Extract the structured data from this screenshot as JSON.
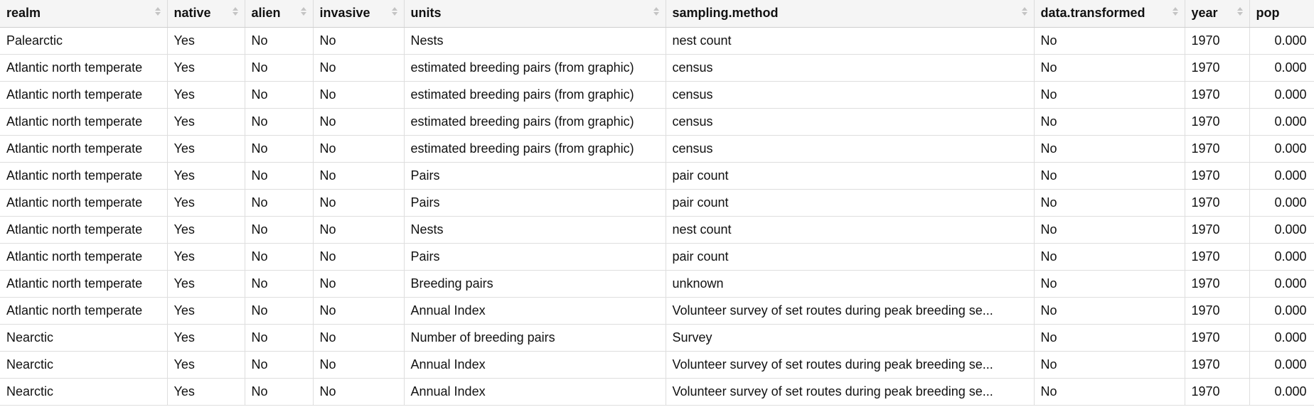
{
  "columns": [
    {
      "key": "realm",
      "label": "realm"
    },
    {
      "key": "native",
      "label": "native"
    },
    {
      "key": "alien",
      "label": "alien"
    },
    {
      "key": "invasive",
      "label": "invasive"
    },
    {
      "key": "units",
      "label": "units"
    },
    {
      "key": "sampling_method",
      "label": "sampling.method"
    },
    {
      "key": "data_transformed",
      "label": "data.transformed"
    },
    {
      "key": "year",
      "label": "year"
    },
    {
      "key": "pop",
      "label": "pop"
    }
  ],
  "rows": [
    [
      "Palearctic",
      "Yes",
      "No",
      "No",
      "Nests",
      "nest count",
      "No",
      "1970",
      "0.000"
    ],
    [
      "Atlantic north temperate",
      "Yes",
      "No",
      "No",
      "estimated breeding pairs (from graphic)",
      "census",
      "No",
      "1970",
      "0.000"
    ],
    [
      "Atlantic north temperate",
      "Yes",
      "No",
      "No",
      "estimated breeding pairs (from graphic)",
      "census",
      "No",
      "1970",
      "0.000"
    ],
    [
      "Atlantic north temperate",
      "Yes",
      "No",
      "No",
      "estimated breeding pairs (from graphic)",
      "census",
      "No",
      "1970",
      "0.000"
    ],
    [
      "Atlantic north temperate",
      "Yes",
      "No",
      "No",
      "estimated breeding pairs (from graphic)",
      "census",
      "No",
      "1970",
      "0.000"
    ],
    [
      "Atlantic north temperate",
      "Yes",
      "No",
      "No",
      "Pairs",
      "pair count",
      "No",
      "1970",
      "0.000"
    ],
    [
      "Atlantic north temperate",
      "Yes",
      "No",
      "No",
      "Pairs",
      "pair count",
      "No",
      "1970",
      "0.000"
    ],
    [
      "Atlantic north temperate",
      "Yes",
      "No",
      "No",
      "Nests",
      "nest count",
      "No",
      "1970",
      "0.000"
    ],
    [
      "Atlantic north temperate",
      "Yes",
      "No",
      "No",
      "Pairs",
      "pair count",
      "No",
      "1970",
      "0.000"
    ],
    [
      "Atlantic north temperate",
      "Yes",
      "No",
      "No",
      "Breeding pairs",
      "unknown",
      "No",
      "1970",
      "0.000"
    ],
    [
      "Atlantic north temperate",
      "Yes",
      "No",
      "No",
      "Annual Index",
      "Volunteer survey of set routes during peak breeding se...",
      "No",
      "1970",
      "0.000"
    ],
    [
      "Nearctic",
      "Yes",
      "No",
      "No",
      "Number of breeding pairs",
      "Survey",
      "No",
      "1970",
      "0.000"
    ],
    [
      "Nearctic",
      "Yes",
      "No",
      "No",
      "Annual Index",
      "Volunteer survey of set routes during peak breeding se...",
      "No",
      "1970",
      "0.000"
    ],
    [
      "Nearctic",
      "Yes",
      "No",
      "No",
      "Annual Index",
      "Volunteer survey of set routes during peak breeding se...",
      "No",
      "1970",
      "0.000"
    ]
  ]
}
